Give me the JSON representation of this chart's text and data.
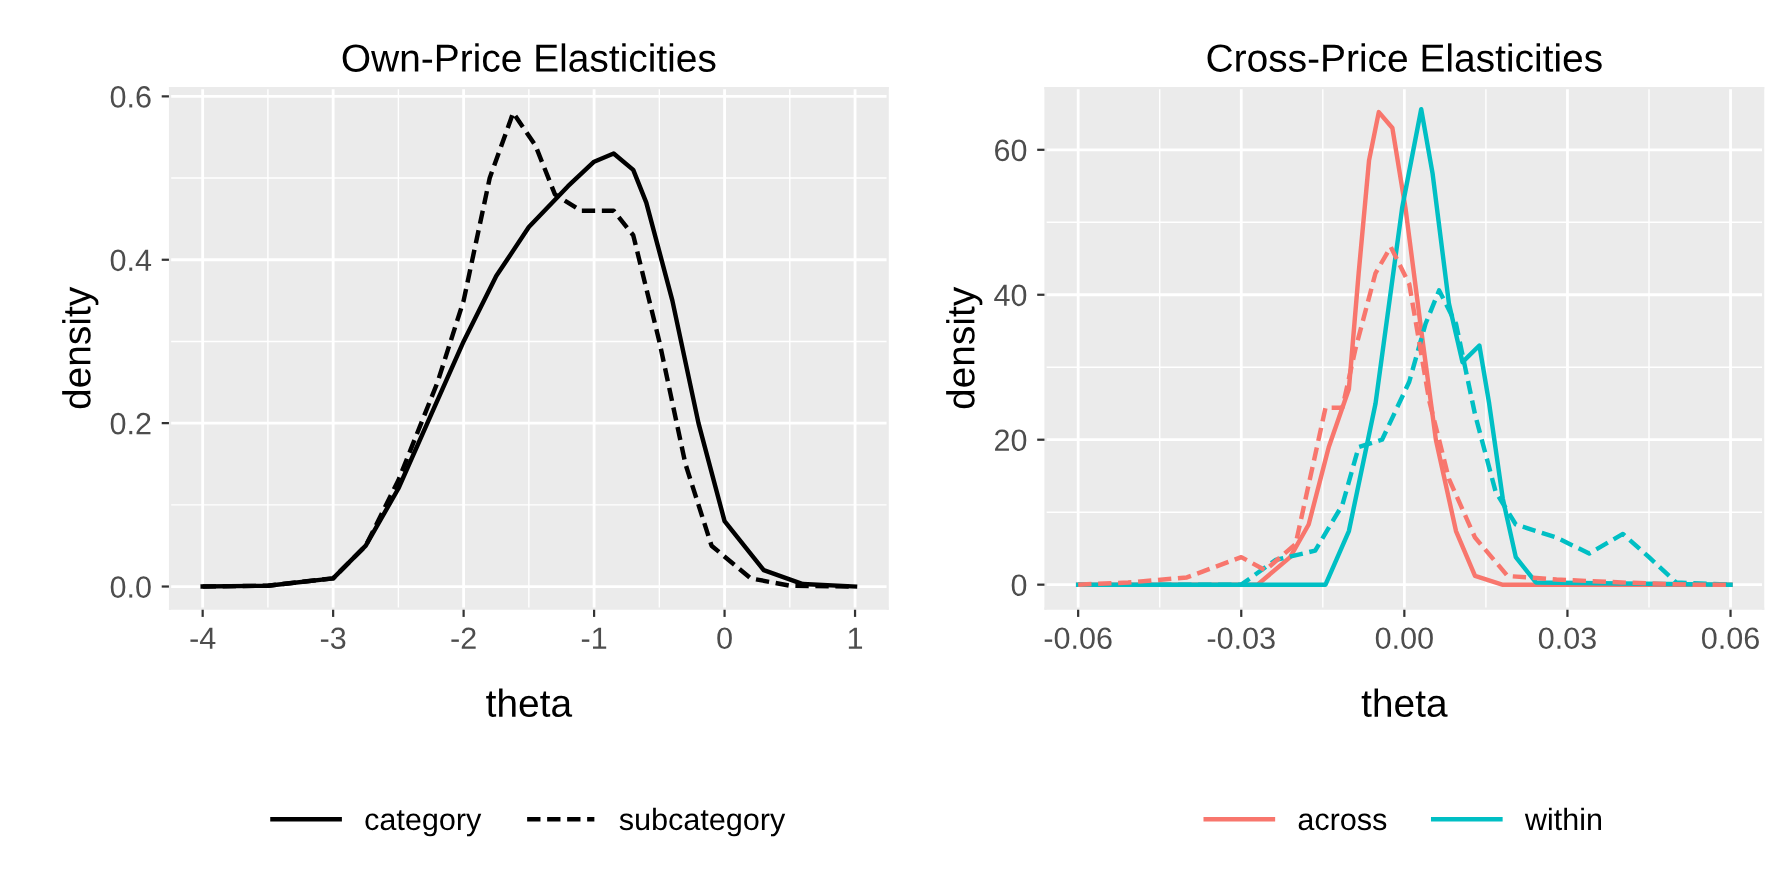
{
  "chart_data": [
    {
      "type": "line",
      "title": "Own-Price Elasticities",
      "xlabel": "theta",
      "ylabel": "density",
      "xlim": [
        -4.25,
        1.25
      ],
      "xticks": [
        -4,
        -3,
        -2,
        -1,
        0,
        1
      ],
      "ylim": [
        -0.027,
        0.61
      ],
      "yticks": [
        {
          "value": 0,
          "label": "0.0"
        },
        {
          "value": 0.2,
          "label": "0.2"
        },
        {
          "value": 0.4,
          "label": "0.4"
        },
        {
          "value": 0.6,
          "label": "0.6"
        }
      ],
      "grid": true,
      "legend": "bottom",
      "series": [
        {
          "name": "category",
          "color": "#000000",
          "line_style": "solid",
          "x": [
            -4,
            -3.5,
            -3,
            -2.75,
            -2.5,
            -2.25,
            -2,
            -1.75,
            -1.5,
            -1.2,
            -1,
            -0.85,
            -0.7,
            -0.6,
            -0.4,
            -0.2,
            0,
            0.3,
            0.6,
            1
          ],
          "values": [
            0,
            0.001,
            0.01,
            0.05,
            0.12,
            0.21,
            0.3,
            0.38,
            0.44,
            0.49,
            0.52,
            0.53,
            0.51,
            0.47,
            0.35,
            0.2,
            0.08,
            0.02,
            0.003,
            0
          ]
        },
        {
          "name": "subcategory",
          "color": "#000000",
          "line_style": "dashed",
          "x": [
            -4,
            -3.5,
            -3,
            -2.75,
            -2.5,
            -2.2,
            -2,
            -1.8,
            -1.62,
            -1.45,
            -1.3,
            -1.1,
            -0.85,
            -0.7,
            -0.5,
            -0.3,
            -0.1,
            0.2,
            0.5,
            1
          ],
          "values": [
            0,
            0.001,
            0.01,
            0.05,
            0.13,
            0.25,
            0.35,
            0.5,
            0.58,
            0.54,
            0.48,
            0.46,
            0.46,
            0.43,
            0.3,
            0.15,
            0.05,
            0.01,
            0.001,
            0
          ]
        }
      ]
    },
    {
      "type": "line",
      "title": "Cross-Price Elasticities",
      "xlabel": "theta",
      "ylabel": "density",
      "xlim": [
        -0.066,
        0.066
      ],
      "xticks": [
        {
          "value": -0.06,
          "label": "-0.06"
        },
        {
          "value": -0.03,
          "label": "-0.03"
        },
        {
          "value": 0,
          "label": "0.00"
        },
        {
          "value": 0.03,
          "label": "0.03"
        },
        {
          "value": 0.06,
          "label": "0.06"
        }
      ],
      "ylim": [
        -3.3,
        68.5
      ],
      "yticks": [
        0,
        20,
        40,
        60
      ],
      "grid": true,
      "legend": "bottom",
      "series": [
        {
          "name": "across",
          "color": "#f8766d",
          "line_style": "solid",
          "x": [
            -0.06,
            -0.027,
            -0.021,
            -0.0176,
            -0.0139,
            -0.0102,
            -0.0084,
            -0.0065,
            -0.0047,
            -0.0022,
            0.0002,
            0.0033,
            0.0058,
            0.0095,
            0.013,
            0.018,
            0.06
          ],
          "values": [
            0,
            0,
            3.8,
            8.3,
            19,
            27,
            43,
            58.5,
            65.2,
            63,
            52,
            34,
            20,
            7.4,
            1.2,
            0,
            0
          ]
        },
        {
          "color": "#f8766d",
          "line_style": "dashed",
          "x": [
            -0.06,
            -0.0508,
            -0.04,
            -0.03,
            -0.0256,
            -0.02,
            -0.0145,
            -0.0114,
            -0.009,
            -0.0053,
            -0.0025,
            0.0009,
            0.0046,
            0.0082,
            0.013,
            0.019,
            0.028,
            0.04,
            0.0525,
            0.06
          ],
          "values": [
            0,
            0.3,
            1,
            3.8,
            2,
            5.6,
            24.4,
            24.4,
            32.5,
            43,
            46.6,
            41.5,
            25.3,
            14.6,
            6.5,
            1.2,
            0.7,
            0.3,
            0,
            0
          ]
        },
        {
          "name": "within",
          "color": "#00bfc4",
          "line_style": "solid",
          "x": [
            -0.06,
            -0.0145,
            -0.0102,
            -0.0053,
            -0.0004,
            0.0031,
            0.0052,
            0.0082,
            0.0107,
            0.0138,
            0.0156,
            0.0181,
            0.0205,
            0.0242,
            0.06
          ],
          "values": [
            0,
            0,
            7.4,
            25,
            52,
            65.6,
            56.7,
            38.8,
            30.7,
            33,
            25,
            11.9,
            3.8,
            0.3,
            0
          ]
        },
        {
          "color": "#00bfc4",
          "line_style": "dashed",
          "x": [
            -0.06,
            -0.03,
            -0.0237,
            -0.0164,
            -0.0114,
            -0.0084,
            -0.0041,
            0.0009,
            0.0039,
            0.0064,
            0.0095,
            0.013,
            0.0168,
            0.0205,
            0.028,
            0.034,
            0.0402,
            0.045,
            0.05,
            0.06
          ],
          "values": [
            0,
            0,
            3.4,
            4.7,
            11,
            19,
            20,
            28,
            36,
            40.6,
            36,
            23.5,
            12.8,
            8.3,
            6.5,
            4.3,
            7,
            3.8,
            0.3,
            0
          ]
        }
      ]
    }
  ]
}
